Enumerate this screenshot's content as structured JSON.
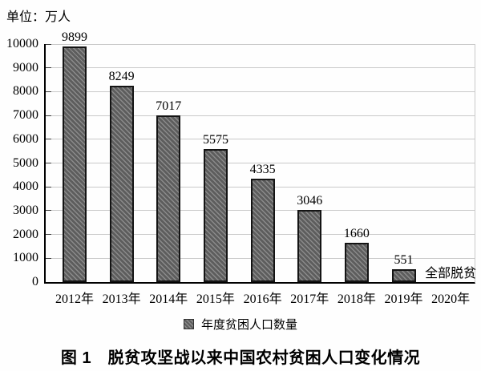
{
  "unit_label": "单位：万人",
  "legend": {
    "marker": "hatched-square",
    "label": "年度贫困人口数量"
  },
  "caption": "图 1　脱贫攻坚战以来中国农村贫困人口变化情况",
  "colors": {
    "bar_fill": "#5d5d5d",
    "bar_hatch_line": "#8b8b8b",
    "bar_border": "#141414",
    "gridline": "#c9c9c9",
    "axis": "#000000",
    "text": "#000000",
    "background": "#fefefe"
  },
  "chart_data": {
    "type": "bar",
    "title": "图 1　脱贫攻坚战以来中国农村贫困人口变化情况",
    "unit": "单位：万人",
    "categories": [
      "2012年",
      "2013年",
      "2014年",
      "2015年",
      "2016年",
      "2017年",
      "2018年",
      "2019年",
      "2020年"
    ],
    "values": [
      9899,
      8249,
      7017,
      5575,
      4335,
      3046,
      1660,
      551,
      null
    ],
    "annotations": [
      {
        "category": "2020年",
        "text": "全部脱贫"
      }
    ],
    "legend_entries": [
      "年度贫困人口数量"
    ],
    "legend_position": "bottom",
    "xlabel": "",
    "ylabel": "",
    "ylim": [
      0,
      10000
    ],
    "yticks": [
      0,
      1000,
      2000,
      3000,
      4000,
      5000,
      6000,
      7000,
      8000,
      9000,
      10000
    ],
    "grid": true,
    "bar_style": "diagonal-hatch"
  }
}
